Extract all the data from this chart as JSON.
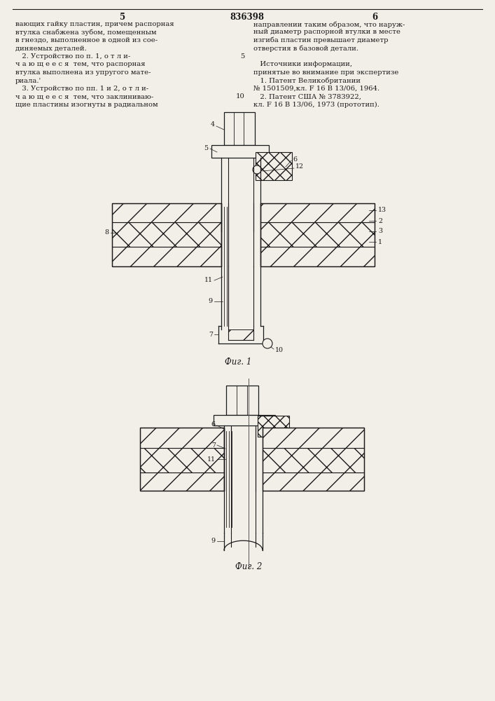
{
  "bg_color": "#f2efe9",
  "line_color": "#1a1a1a",
  "text_color": "#1a1a1a",
  "page_width": 7.07,
  "page_height": 10.0,
  "page_num_left": "5",
  "page_num_center": "836398",
  "page_num_right": "6",
  "fig1_caption": "Фиг. 1",
  "fig2_caption": "Фиг. 2",
  "left_col_text": [
    "вающих гайку пластин, причем распорная",
    "втулка снабжена зубом, помещенным",
    "в гнездо, выполненное в одной из сое-",
    "диняемых деталей.",
    "   2. Устройство по п. 1, о т л и-",
    "ч а ю щ е е с я  тем, что распорная",
    "втулка выполнена из упругого мате-",
    "риала.'",
    "   3. Устройство по пп. 1 и 2, о т л и-",
    "ч а ю щ е е с я  тем, что заклиниваю-",
    "щие пластины изогнуты в радиальном"
  ],
  "right_col_text": [
    "направлении таким образом, что наруж-",
    "ный диаметр распорной втулки в месте",
    "изгиба пластин превышает диаметр",
    "отверстия в базовой детали.",
    "",
    "   Источники информации,",
    "принятые во внимание при экспертизе",
    "   1. Патент Великобритании",
    "№ 1501509,кл. F 16 B 13/06, 1964.",
    "   2. Патент США № 3783922,",
    "кл. F 16 B 13/06, 1973 (прототип)."
  ],
  "line_num_5": "5",
  "line_num_10": "10"
}
